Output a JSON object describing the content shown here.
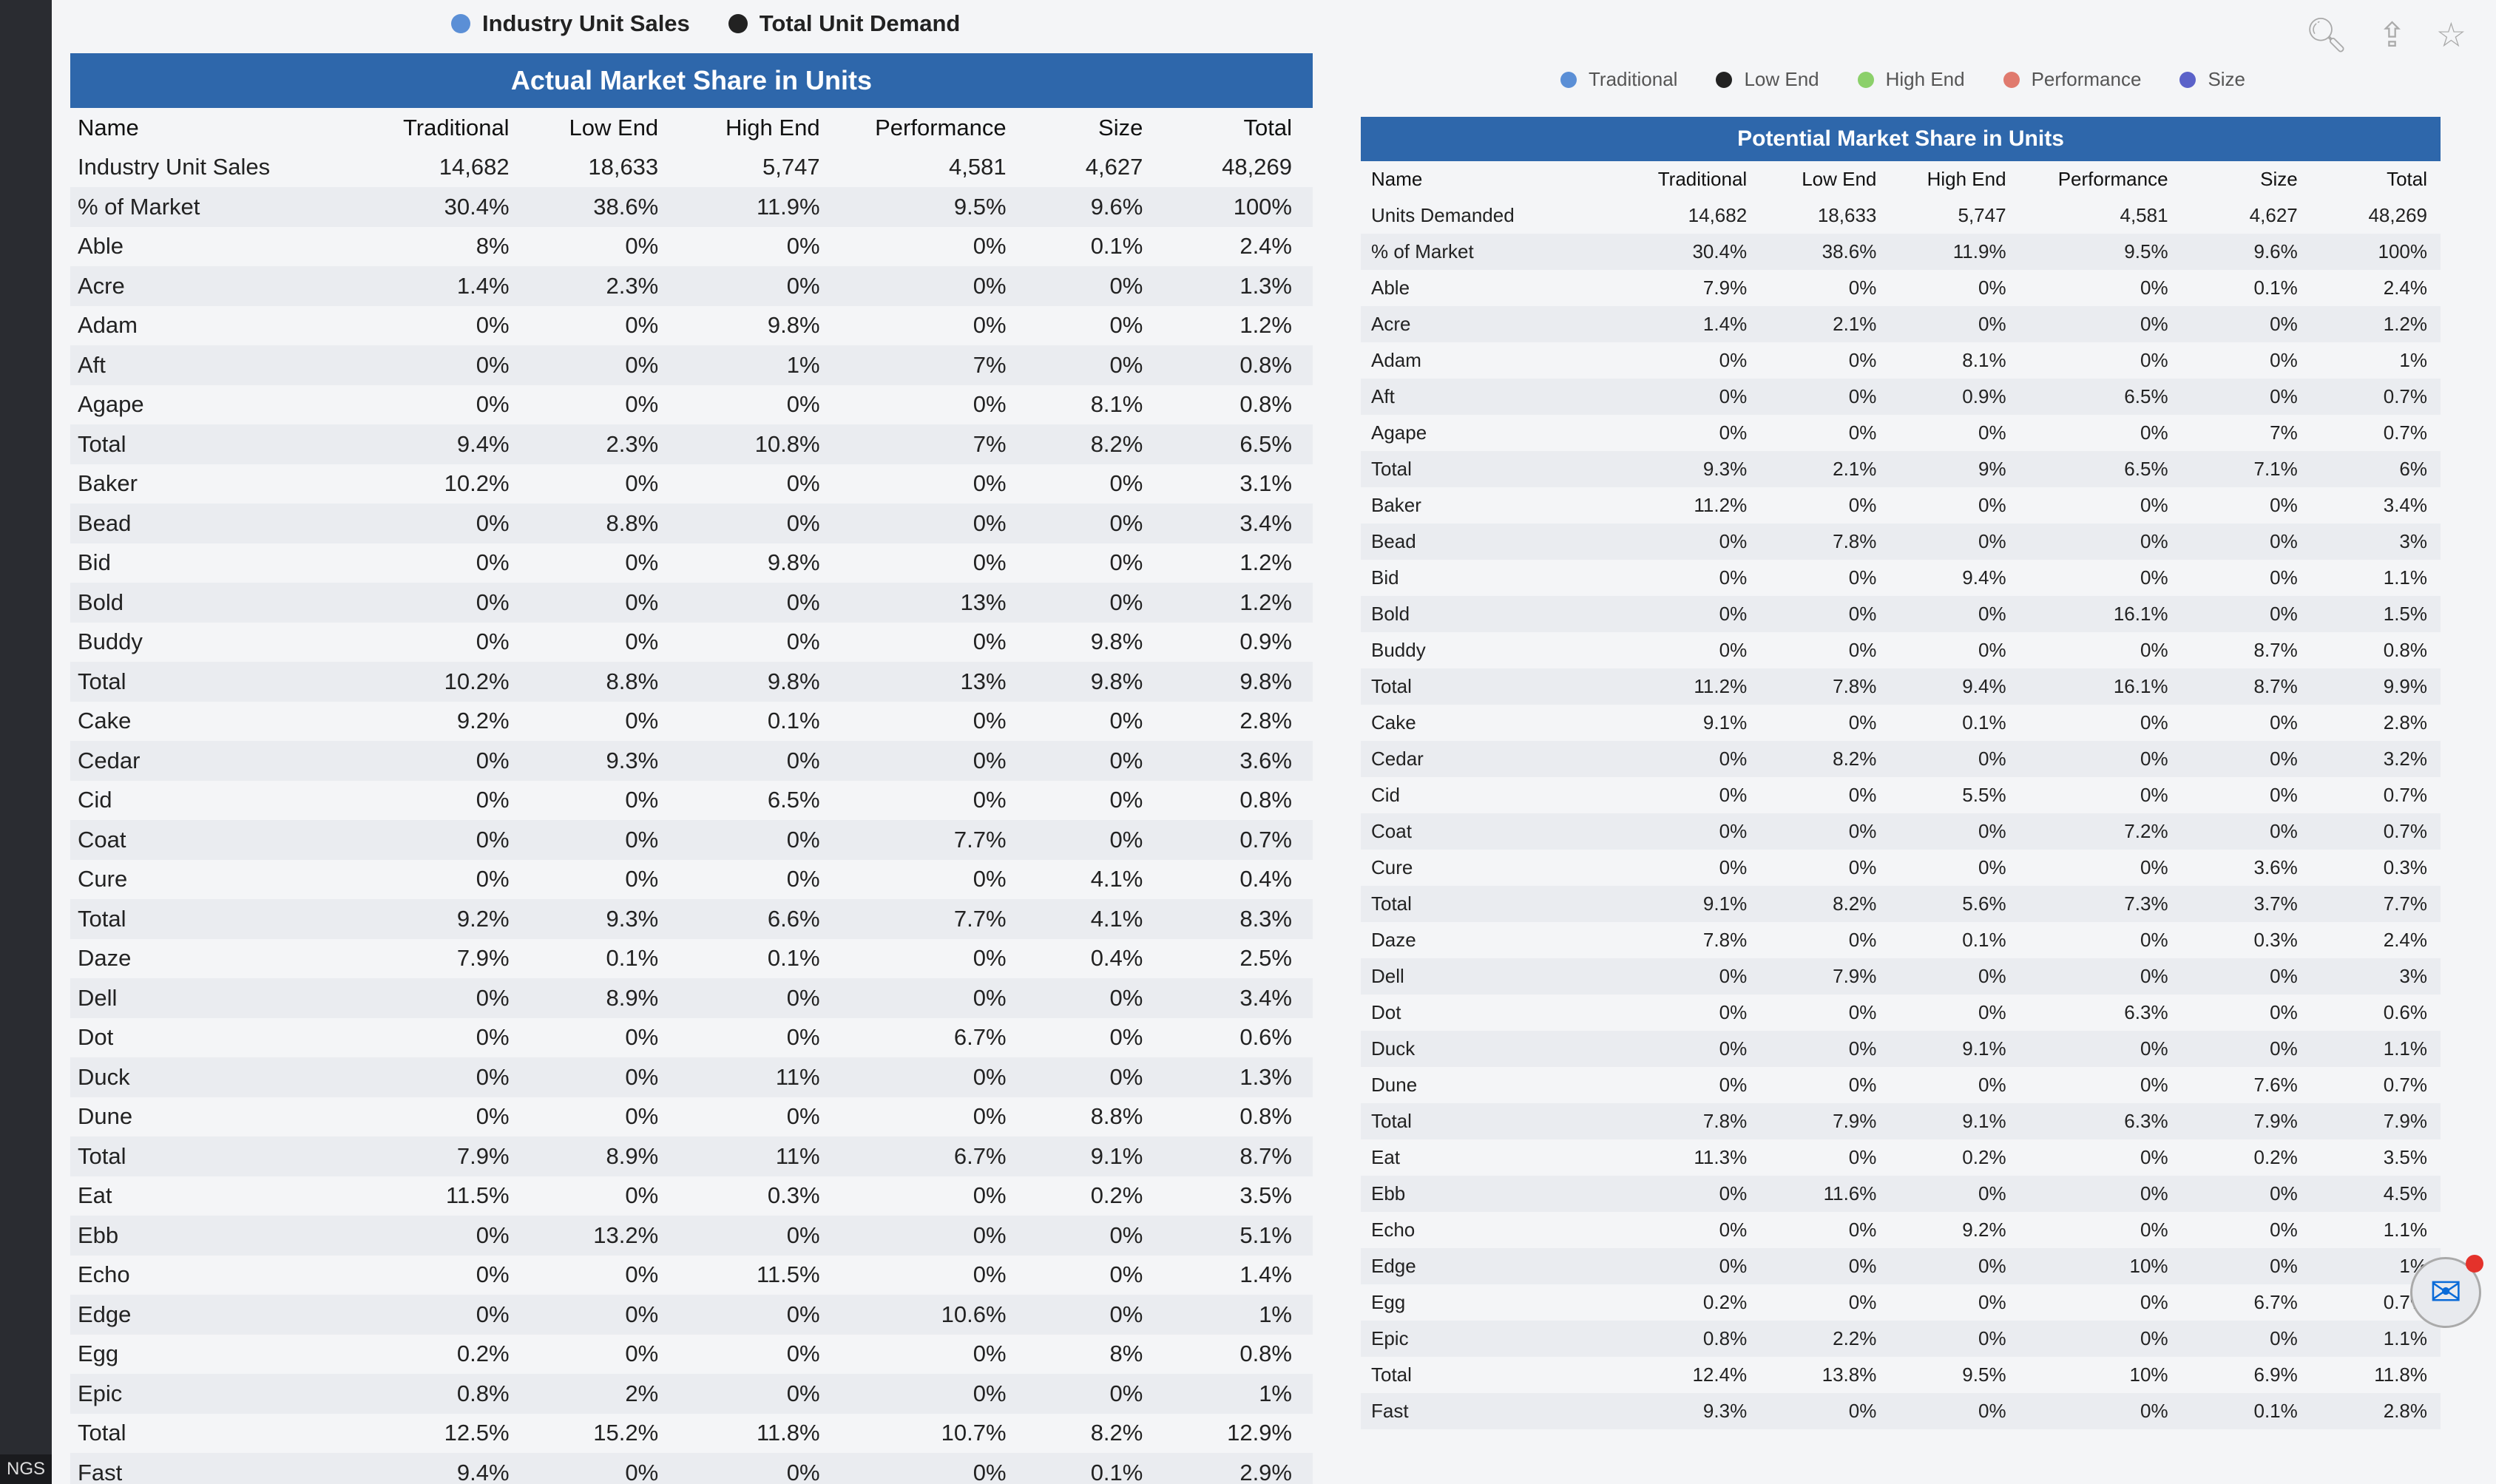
{
  "taskbar_label": "NGS",
  "legend_actual": [
    {
      "label": "Industry Unit Sales",
      "color": "#5b8fd6"
    },
    {
      "label": "Total Unit Demand",
      "color": "#222222"
    }
  ],
  "legend_potential": [
    {
      "label": "Traditional",
      "color": "#5b8fd6"
    },
    {
      "label": "Low End",
      "color": "#222222"
    },
    {
      "label": "High End",
      "color": "#8bd06a"
    },
    {
      "label": "Performance",
      "color": "#e07a6e"
    },
    {
      "label": "Size",
      "color": "#5b62c9"
    }
  ],
  "actual": {
    "title": "Actual Market Share in Units",
    "headers": [
      "Name",
      "Traditional",
      "Low End",
      "High End",
      "Performance",
      "Size",
      "Total"
    ],
    "rows": [
      [
        "Industry Unit Sales",
        "14,682",
        "18,633",
        "5,747",
        "4,581",
        "4,627",
        "48,269"
      ],
      [
        "% of Market",
        "30.4%",
        "38.6%",
        "11.9%",
        "9.5%",
        "9.6%",
        "100%"
      ],
      [
        "Able",
        "8%",
        "0%",
        "0%",
        "0%",
        "0.1%",
        "2.4%"
      ],
      [
        "Acre",
        "1.4%",
        "2.3%",
        "0%",
        "0%",
        "0%",
        "1.3%"
      ],
      [
        "Adam",
        "0%",
        "0%",
        "9.8%",
        "0%",
        "0%",
        "1.2%"
      ],
      [
        "Aft",
        "0%",
        "0%",
        "1%",
        "7%",
        "0%",
        "0.8%"
      ],
      [
        "Agape",
        "0%",
        "0%",
        "0%",
        "0%",
        "8.1%",
        "0.8%"
      ],
      [
        "Total",
        "9.4%",
        "2.3%",
        "10.8%",
        "7%",
        "8.2%",
        "6.5%"
      ],
      [
        "Baker",
        "10.2%",
        "0%",
        "0%",
        "0%",
        "0%",
        "3.1%"
      ],
      [
        "Bead",
        "0%",
        "8.8%",
        "0%",
        "0%",
        "0%",
        "3.4%"
      ],
      [
        "Bid",
        "0%",
        "0%",
        "9.8%",
        "0%",
        "0%",
        "1.2%"
      ],
      [
        "Bold",
        "0%",
        "0%",
        "0%",
        "13%",
        "0%",
        "1.2%"
      ],
      [
        "Buddy",
        "0%",
        "0%",
        "0%",
        "0%",
        "9.8%",
        "0.9%"
      ],
      [
        "Total",
        "10.2%",
        "8.8%",
        "9.8%",
        "13%",
        "9.8%",
        "9.8%"
      ],
      [
        "Cake",
        "9.2%",
        "0%",
        "0.1%",
        "0%",
        "0%",
        "2.8%"
      ],
      [
        "Cedar",
        "0%",
        "9.3%",
        "0%",
        "0%",
        "0%",
        "3.6%"
      ],
      [
        "Cid",
        "0%",
        "0%",
        "6.5%",
        "0%",
        "0%",
        "0.8%"
      ],
      [
        "Coat",
        "0%",
        "0%",
        "0%",
        "7.7%",
        "0%",
        "0.7%"
      ],
      [
        "Cure",
        "0%",
        "0%",
        "0%",
        "0%",
        "4.1%",
        "0.4%"
      ],
      [
        "Total",
        "9.2%",
        "9.3%",
        "6.6%",
        "7.7%",
        "4.1%",
        "8.3%"
      ],
      [
        "Daze",
        "7.9%",
        "0.1%",
        "0.1%",
        "0%",
        "0.4%",
        "2.5%"
      ],
      [
        "Dell",
        "0%",
        "8.9%",
        "0%",
        "0%",
        "0%",
        "3.4%"
      ],
      [
        "Dot",
        "0%",
        "0%",
        "0%",
        "6.7%",
        "0%",
        "0.6%"
      ],
      [
        "Duck",
        "0%",
        "0%",
        "11%",
        "0%",
        "0%",
        "1.3%"
      ],
      [
        "Dune",
        "0%",
        "0%",
        "0%",
        "0%",
        "8.8%",
        "0.8%"
      ],
      [
        "Total",
        "7.9%",
        "8.9%",
        "11%",
        "6.7%",
        "9.1%",
        "8.7%"
      ],
      [
        "Eat",
        "11.5%",
        "0%",
        "0.3%",
        "0%",
        "0.2%",
        "3.5%"
      ],
      [
        "Ebb",
        "0%",
        "13.2%",
        "0%",
        "0%",
        "0%",
        "5.1%"
      ],
      [
        "Echo",
        "0%",
        "0%",
        "11.5%",
        "0%",
        "0%",
        "1.4%"
      ],
      [
        "Edge",
        "0%",
        "0%",
        "0%",
        "10.6%",
        "0%",
        "1%"
      ],
      [
        "Egg",
        "0.2%",
        "0%",
        "0%",
        "0%",
        "8%",
        "0.8%"
      ],
      [
        "Epic",
        "0.8%",
        "2%",
        "0%",
        "0%",
        "0%",
        "1%"
      ],
      [
        "Total",
        "12.5%",
        "15.2%",
        "11.8%",
        "10.7%",
        "8.2%",
        "12.9%"
      ],
      [
        "Fast",
        "9.4%",
        "0%",
        "0%",
        "0%",
        "0.1%",
        "2.9%"
      ]
    ]
  },
  "potential": {
    "title": "Potential Market Share in Units",
    "headers": [
      "Name",
      "Traditional",
      "Low End",
      "High End",
      "Performance",
      "Size",
      "Total"
    ],
    "rows": [
      [
        "Units Demanded",
        "14,682",
        "18,633",
        "5,747",
        "4,581",
        "4,627",
        "48,269"
      ],
      [
        "% of Market",
        "30.4%",
        "38.6%",
        "11.9%",
        "9.5%",
        "9.6%",
        "100%"
      ],
      [
        "Able",
        "7.9%",
        "0%",
        "0%",
        "0%",
        "0.1%",
        "2.4%"
      ],
      [
        "Acre",
        "1.4%",
        "2.1%",
        "0%",
        "0%",
        "0%",
        "1.2%"
      ],
      [
        "Adam",
        "0%",
        "0%",
        "8.1%",
        "0%",
        "0%",
        "1%"
      ],
      [
        "Aft",
        "0%",
        "0%",
        "0.9%",
        "6.5%",
        "0%",
        "0.7%"
      ],
      [
        "Agape",
        "0%",
        "0%",
        "0%",
        "0%",
        "7%",
        "0.7%"
      ],
      [
        "Total",
        "9.3%",
        "2.1%",
        "9%",
        "6.5%",
        "7.1%",
        "6%"
      ],
      [
        "Baker",
        "11.2%",
        "0%",
        "0%",
        "0%",
        "0%",
        "3.4%"
      ],
      [
        "Bead",
        "0%",
        "7.8%",
        "0%",
        "0%",
        "0%",
        "3%"
      ],
      [
        "Bid",
        "0%",
        "0%",
        "9.4%",
        "0%",
        "0%",
        "1.1%"
      ],
      [
        "Bold",
        "0%",
        "0%",
        "0%",
        "16.1%",
        "0%",
        "1.5%"
      ],
      [
        "Buddy",
        "0%",
        "0%",
        "0%",
        "0%",
        "8.7%",
        "0.8%"
      ],
      [
        "Total",
        "11.2%",
        "7.8%",
        "9.4%",
        "16.1%",
        "8.7%",
        "9.9%"
      ],
      [
        "Cake",
        "9.1%",
        "0%",
        "0.1%",
        "0%",
        "0%",
        "2.8%"
      ],
      [
        "Cedar",
        "0%",
        "8.2%",
        "0%",
        "0%",
        "0%",
        "3.2%"
      ],
      [
        "Cid",
        "0%",
        "0%",
        "5.5%",
        "0%",
        "0%",
        "0.7%"
      ],
      [
        "Coat",
        "0%",
        "0%",
        "0%",
        "7.2%",
        "0%",
        "0.7%"
      ],
      [
        "Cure",
        "0%",
        "0%",
        "0%",
        "0%",
        "3.6%",
        "0.3%"
      ],
      [
        "Total",
        "9.1%",
        "8.2%",
        "5.6%",
        "7.3%",
        "3.7%",
        "7.7%"
      ],
      [
        "Daze",
        "7.8%",
        "0%",
        "0.1%",
        "0%",
        "0.3%",
        "2.4%"
      ],
      [
        "Dell",
        "0%",
        "7.9%",
        "0%",
        "0%",
        "0%",
        "3%"
      ],
      [
        "Dot",
        "0%",
        "0%",
        "0%",
        "6.3%",
        "0%",
        "0.6%"
      ],
      [
        "Duck",
        "0%",
        "0%",
        "9.1%",
        "0%",
        "0%",
        "1.1%"
      ],
      [
        "Dune",
        "0%",
        "0%",
        "0%",
        "0%",
        "7.6%",
        "0.7%"
      ],
      [
        "Total",
        "7.8%",
        "7.9%",
        "9.1%",
        "6.3%",
        "7.9%",
        "7.9%"
      ],
      [
        "Eat",
        "11.3%",
        "0%",
        "0.2%",
        "0%",
        "0.2%",
        "3.5%"
      ],
      [
        "Ebb",
        "0%",
        "11.6%",
        "0%",
        "0%",
        "0%",
        "4.5%"
      ],
      [
        "Echo",
        "0%",
        "0%",
        "9.2%",
        "0%",
        "0%",
        "1.1%"
      ],
      [
        "Edge",
        "0%",
        "0%",
        "0%",
        "10%",
        "0%",
        "1%"
      ],
      [
        "Egg",
        "0.2%",
        "0%",
        "0%",
        "0%",
        "6.7%",
        "0.7%"
      ],
      [
        "Epic",
        "0.8%",
        "2.2%",
        "0%",
        "0%",
        "0%",
        "1.1%"
      ],
      [
        "Total",
        "12.4%",
        "13.8%",
        "9.5%",
        "10%",
        "6.9%",
        "11.8%"
      ],
      [
        "Fast",
        "9.3%",
        "0%",
        "0%",
        "0%",
        "0.1%",
        "2.8%"
      ]
    ]
  }
}
